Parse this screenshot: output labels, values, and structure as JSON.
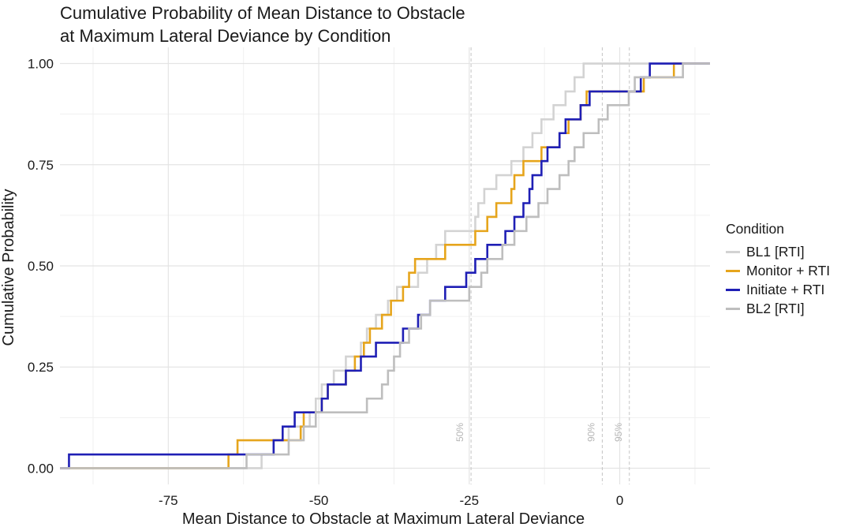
{
  "title_line1": "Cumulative Probability of Mean Distance to Obstacle",
  "title_line2": "at Maximum Lateral Deviance by Condition",
  "chart_data": {
    "type": "line",
    "step": true,
    "xlabel": "Mean Distance to Obstacle at Maximum Lateral Deviance",
    "ylabel": "Cumulative Probability",
    "xlim": [
      -93,
      15
    ],
    "ylim": [
      0,
      1
    ],
    "x_ticks": [
      -75,
      -50,
      -25,
      0
    ],
    "x_tick_labels": [
      "-75",
      "-50",
      "-25",
      "0"
    ],
    "y_ticks": [
      0,
      0.25,
      0.5,
      0.75,
      1
    ],
    "y_tick_labels": [
      "0.00",
      "0.25",
      "0.50",
      "0.75",
      "1.00"
    ],
    "grid": true,
    "legend_title": "Condition",
    "legend_position": "right",
    "percentile_lines": [
      {
        "label": "50%",
        "x": -24.7
      },
      {
        "label": "90%",
        "x": -2.9
      },
      {
        "label": "95%",
        "x": 1.6
      }
    ],
    "series": [
      {
        "name": "BL1 [RTI]",
        "color": "#d3d3d3",
        "x": [
          -59.5,
          -57.5,
          -55.0,
          -51.5,
          -50.5,
          -49.5,
          -47.5,
          -45.5,
          -43.0,
          -42.0,
          -40.5,
          -38.5,
          -37.0,
          -33.5,
          -32.0,
          -30.5,
          -29.0,
          -24.0,
          -23.5,
          -22.5,
          -20.5,
          -18.0,
          -16.0,
          -14.5,
          -13.0,
          -11.0,
          -9.0,
          -7.5,
          -6.0,
          -4.0,
          -2.0,
          0.5,
          2.5,
          10.5
        ],
        "y": [
          0.034,
          0.069,
          0.103,
          0.138,
          0.172,
          0.207,
          0.241,
          0.276,
          0.31,
          0.345,
          0.379,
          0.414,
          0.448,
          0.483,
          0.517,
          0.552,
          0.586,
          0.621,
          0.655,
          0.69,
          0.724,
          0.759,
          0.793,
          0.828,
          0.862,
          0.897,
          0.931,
          0.966,
          1.0,
          1.0,
          1.0,
          1.0,
          1.0,
          1.0
        ]
      },
      {
        "name": "Monitor + RTI",
        "color": "#e6a51c",
        "x": [
          -65.0,
          -63.5,
          -53.0,
          -52.5,
          -49.5,
          -48.5,
          -45.5,
          -44.0,
          -42.5,
          -41.5,
          -39.5,
          -38.0,
          -36.0,
          -35.0,
          -34.0,
          -33.5,
          -29.0,
          -25.5,
          -24.0,
          -22.0,
          -20.5,
          -18.0,
          -17.5,
          -16.0,
          -13.0,
          -10.0,
          -8.5,
          -6.5,
          -5.5,
          4.0,
          9.0
        ],
        "y": [
          0.034,
          0.069,
          0.103,
          0.138,
          0.172,
          0.207,
          0.241,
          0.276,
          0.31,
          0.345,
          0.379,
          0.414,
          0.448,
          0.483,
          0.517,
          0.517,
          0.552,
          0.552,
          0.586,
          0.621,
          0.655,
          0.69,
          0.724,
          0.759,
          0.793,
          0.828,
          0.862,
          0.897,
          0.931,
          0.966,
          1.0
        ]
      },
      {
        "name": "Initiate + RTI",
        "color": "#1f1fb5",
        "x": [
          -91.5,
          -57.5,
          -56.0,
          -54.0,
          -49.5,
          -48.5,
          -45.5,
          -43.0,
          -40.5,
          -36.0,
          -33.5,
          -31.5,
          -29.0,
          -25.5,
          -24.0,
          -22.0,
          -19.0,
          -17.5,
          -16.0,
          -15.0,
          -14.5,
          -13.0,
          -12.0,
          -10.0,
          -9.0,
          -6.5,
          -5.0,
          -2.0,
          3.5,
          5.0
        ],
        "y": [
          0.034,
          0.069,
          0.103,
          0.138,
          0.172,
          0.207,
          0.241,
          0.276,
          0.31,
          0.345,
          0.379,
          0.414,
          0.448,
          0.483,
          0.517,
          0.552,
          0.586,
          0.621,
          0.655,
          0.69,
          0.724,
          0.759,
          0.793,
          0.828,
          0.862,
          0.897,
          0.931,
          0.931,
          0.966,
          1.0
        ]
      },
      {
        "name": "BL2 [RTI]",
        "color": "#bebebe",
        "x": [
          -62.0,
          -55.0,
          -52.5,
          -50.5,
          -42.0,
          -39.5,
          -38.5,
          -37.5,
          -36.5,
          -35.0,
          -33.0,
          -31.5,
          -25.0,
          -23.0,
          -22.0,
          -19.5,
          -17.5,
          -15.5,
          -13.5,
          -12.0,
          -10.0,
          -8.5,
          -7.5,
          -6.0,
          -3.5,
          -2.0,
          1.5,
          2.5,
          10.5
        ],
        "y": [
          0.034,
          0.069,
          0.103,
          0.138,
          0.172,
          0.207,
          0.241,
          0.276,
          0.31,
          0.345,
          0.379,
          0.414,
          0.448,
          0.483,
          0.517,
          0.552,
          0.586,
          0.621,
          0.655,
          0.69,
          0.724,
          0.759,
          0.793,
          0.828,
          0.862,
          0.897,
          0.931,
          0.966,
          1.0
        ]
      }
    ]
  }
}
